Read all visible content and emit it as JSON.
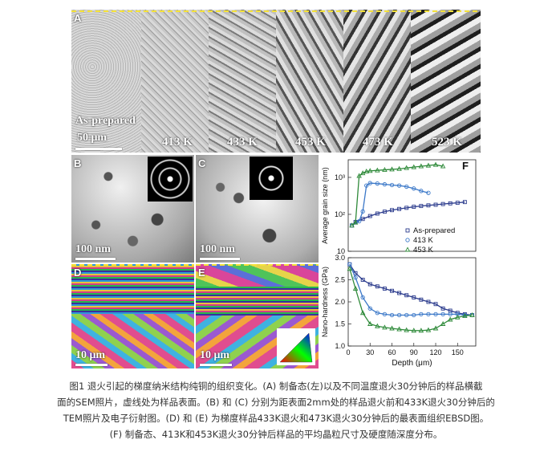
{
  "panelA": {
    "letter": "A",
    "scale_text": "50 μm",
    "labels": [
      "As-prepared",
      "413 K",
      "433 K",
      "453 K",
      "473 K",
      "523 K"
    ]
  },
  "panelB": {
    "letter": "B",
    "scale_text": "100 nm"
  },
  "panelC": {
    "letter": "C",
    "scale_text": "100 nm"
  },
  "panelD": {
    "letter": "D",
    "scale_text": "10 μm"
  },
  "panelE": {
    "letter": "E",
    "scale_text": "10 μm"
  },
  "panelF": {
    "letter": "F"
  },
  "colors": {
    "as_prepared": "#2a3a8c",
    "k413": "#3b78c8",
    "k453": "#2f8a3a",
    "surface_dash": "#f5e23a"
  },
  "chart_data": [
    {
      "type": "scatter",
      "ylabel": "Average grain size (nm)",
      "yscale": "log",
      "ylim": [
        10,
        3000
      ],
      "yticks": [
        "10",
        "10²",
        "10³"
      ],
      "xlim": [
        0,
        175
      ],
      "series": [
        {
          "name": "As-prepared",
          "marker": "square",
          "x": [
            5,
            10,
            20,
            30,
            40,
            50,
            60,
            70,
            80,
            90,
            100,
            110,
            120,
            130,
            140,
            150,
            160
          ],
          "y": [
            50,
            62,
            75,
            90,
            105,
            118,
            130,
            140,
            150,
            160,
            168,
            175,
            182,
            190,
            198,
            205,
            215
          ]
        },
        {
          "name": "413 K",
          "marker": "circle",
          "x": [
            5,
            15,
            20,
            25,
            30,
            40,
            50,
            60,
            70,
            80,
            90,
            100,
            110
          ],
          "y": [
            50,
            65,
            120,
            600,
            700,
            680,
            650,
            620,
            600,
            560,
            500,
            430,
            380
          ]
        },
        {
          "name": "453 K",
          "marker": "triangle",
          "x": [
            5,
            10,
            15,
            20,
            25,
            30,
            40,
            50,
            60,
            70,
            80,
            90,
            100,
            110,
            120,
            130
          ],
          "y": [
            50,
            60,
            1100,
            1300,
            1450,
            1500,
            1550,
            1600,
            1650,
            1700,
            1800,
            1900,
            2000,
            2100,
            2200,
            2000
          ]
        }
      ],
      "legend": {
        "position": "bottom-right",
        "entries": [
          "As-prepared",
          "413 K",
          "453 K"
        ]
      }
    },
    {
      "type": "scatter",
      "ylabel": "Nano-hardness (GPa)",
      "xlabel": "Depth (μm)",
      "ylim": [
        1.0,
        3.0
      ],
      "yticks": [
        "1.0",
        "1.5",
        "2.0",
        "2.5",
        "3.0"
      ],
      "xticks": [
        "0",
        "30",
        "60",
        "90",
        "120",
        "150"
      ],
      "xlim": [
        0,
        175
      ],
      "series": [
        {
          "name": "As-prepared",
          "marker": "square",
          "x": [
            2,
            10,
            20,
            30,
            40,
            50,
            60,
            70,
            80,
            90,
            100,
            110,
            120,
            130,
            140,
            150,
            160,
            170
          ],
          "y": [
            2.85,
            2.65,
            2.5,
            2.4,
            2.35,
            2.3,
            2.25,
            2.2,
            2.15,
            2.1,
            2.05,
            2.0,
            1.95,
            1.85,
            1.8,
            1.75,
            1.72,
            1.7
          ]
        },
        {
          "name": "413 K",
          "marker": "circle",
          "x": [
            2,
            10,
            20,
            30,
            40,
            50,
            60,
            70,
            80,
            90,
            100,
            110,
            120,
            130,
            140,
            150,
            160,
            170
          ],
          "y": [
            2.85,
            2.55,
            2.1,
            1.85,
            1.75,
            1.72,
            1.7,
            1.7,
            1.7,
            1.7,
            1.72,
            1.72,
            1.72,
            1.72,
            1.72,
            1.72,
            1.7,
            1.7
          ]
        },
        {
          "name": "453 K",
          "marker": "triangle",
          "x": [
            2,
            10,
            20,
            30,
            40,
            50,
            60,
            70,
            80,
            90,
            100,
            110,
            120,
            130,
            140,
            150,
            160,
            170
          ],
          "y": [
            2.75,
            2.3,
            1.75,
            1.5,
            1.45,
            1.42,
            1.4,
            1.38,
            1.36,
            1.35,
            1.35,
            1.36,
            1.4,
            1.5,
            1.6,
            1.65,
            1.68,
            1.7
          ]
        }
      ]
    }
  ],
  "caption": {
    "line1": "图1 退火引起的梯度纳米结构纯铜的组织变化。(A) 制备态(左)以及不同温度退火30分钟后的样品横截",
    "line2": "面的SEM照片，虚线处为样品表面。(B) 和 (C) 分别为距表面2mm处的样品退火前和433K退火30分钟后的",
    "line3": "TEM照片及电子衍射图。(D) 和 (E) 为梯度样品433K退火和473K退火30分钟后的最表面组织EBSD图。",
    "line4": "(F) 制备态、413K和453K退火30分钟后样品的平均晶粒尺寸及硬度随深度分布。"
  }
}
